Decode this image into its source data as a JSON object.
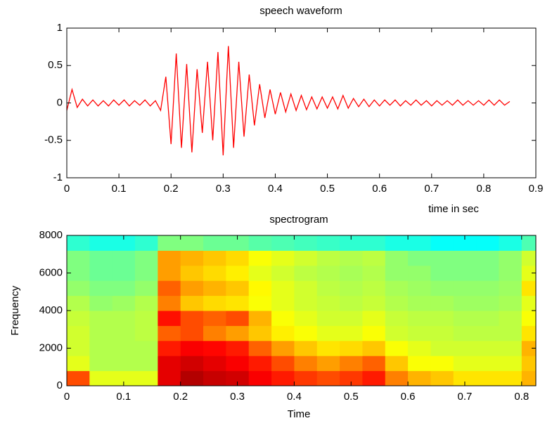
{
  "chart_data": [
    {
      "type": "line",
      "title": "speech waveform",
      "xlabel": "time in sec",
      "x": [
        0,
        0.01,
        0.02,
        0.03,
        0.04,
        0.05,
        0.06,
        0.07,
        0.08,
        0.09,
        0.1,
        0.11,
        0.12,
        0.13,
        0.14,
        0.15,
        0.16,
        0.17,
        0.18,
        0.19,
        0.2,
        0.21,
        0.22,
        0.23,
        0.24,
        0.25,
        0.26,
        0.27,
        0.28,
        0.29,
        0.3,
        0.31,
        0.32,
        0.33,
        0.34,
        0.35,
        0.36,
        0.37,
        0.38,
        0.39,
        0.4,
        0.41,
        0.42,
        0.43,
        0.44,
        0.45,
        0.46,
        0.47,
        0.48,
        0.49,
        0.5,
        0.51,
        0.52,
        0.53,
        0.54,
        0.55,
        0.56,
        0.57,
        0.58,
        0.59,
        0.6,
        0.61,
        0.62,
        0.63,
        0.64,
        0.65,
        0.66,
        0.67,
        0.68,
        0.69,
        0.7,
        0.71,
        0.72,
        0.73,
        0.74,
        0.75,
        0.76,
        0.77,
        0.78,
        0.79,
        0.8,
        0.81,
        0.82,
        0.83,
        0.84,
        0.85
      ],
      "values": [
        -0.1,
        0.18,
        -0.06,
        0.05,
        -0.04,
        0.04,
        -0.04,
        0.03,
        -0.04,
        0.04,
        -0.03,
        0.04,
        -0.04,
        0.03,
        -0.03,
        0.04,
        -0.04,
        0.03,
        -0.1,
        0.35,
        -0.55,
        0.66,
        -0.6,
        0.52,
        -0.66,
        0.45,
        -0.4,
        0.55,
        -0.5,
        0.68,
        -0.7,
        0.76,
        -0.6,
        0.55,
        -0.45,
        0.38,
        -0.3,
        0.25,
        -0.2,
        0.18,
        -0.15,
        0.14,
        -0.12,
        0.12,
        -0.1,
        0.1,
        -0.09,
        0.08,
        -0.08,
        0.08,
        -0.07,
        0.08,
        -0.08,
        0.1,
        -0.07,
        0.06,
        -0.05,
        0.05,
        -0.05,
        0.04,
        -0.04,
        0.04,
        -0.03,
        0.04,
        -0.04,
        0.03,
        -0.03,
        0.04,
        -0.03,
        0.03,
        -0.04,
        0.03,
        -0.03,
        0.03,
        -0.03,
        0.04,
        -0.03,
        0.03,
        -0.03,
        0.03,
        -0.03,
        0.04,
        -0.03,
        0.04,
        -0.03,
        0.02
      ],
      "color": "#ff0000",
      "xlim": [
        0,
        0.9
      ],
      "xticks": [
        0,
        0.1,
        0.2,
        0.3,
        0.4,
        0.5,
        0.6,
        0.7,
        0.8,
        0.9
      ],
      "ylim": [
        -1,
        1
      ],
      "yticks": [
        -1,
        -0.5,
        0,
        0.5,
        1
      ]
    },
    {
      "type": "heatmap",
      "title": "spectrogram",
      "xlabel": "Time",
      "ylabel": "Frequency",
      "colormap": "jet",
      "zlim": [
        0,
        1
      ],
      "xbins": [
        0,
        0.04,
        0.08,
        0.12,
        0.16,
        0.2,
        0.24,
        0.28,
        0.32,
        0.36,
        0.4,
        0.44,
        0.48,
        0.52,
        0.56,
        0.6,
        0.64,
        0.68,
        0.72,
        0.76,
        0.8,
        0.825
      ],
      "ybins": [
        0,
        800,
        1600,
        2400,
        3200,
        4000,
        4800,
        5600,
        6400,
        7200,
        8000
      ],
      "z": [
        [
          0.8,
          0.6,
          0.6,
          0.6,
          0.9,
          0.95,
          0.93,
          0.92,
          0.88,
          0.85,
          0.82,
          0.8,
          0.82,
          0.85,
          0.75,
          0.7,
          0.68,
          0.65,
          0.65,
          0.65,
          0.7
        ],
        [
          0.6,
          0.55,
          0.55,
          0.55,
          0.9,
          0.92,
          0.9,
          0.88,
          0.85,
          0.8,
          0.75,
          0.72,
          0.75,
          0.78,
          0.68,
          0.62,
          0.62,
          0.6,
          0.6,
          0.6,
          0.68
        ],
        [
          0.58,
          0.55,
          0.55,
          0.55,
          0.85,
          0.88,
          0.87,
          0.85,
          0.78,
          0.72,
          0.68,
          0.65,
          0.66,
          0.68,
          0.62,
          0.6,
          0.58,
          0.58,
          0.58,
          0.58,
          0.7
        ],
        [
          0.58,
          0.55,
          0.55,
          0.56,
          0.78,
          0.8,
          0.75,
          0.72,
          0.68,
          0.64,
          0.62,
          0.6,
          0.6,
          0.62,
          0.58,
          0.57,
          0.57,
          0.56,
          0.56,
          0.56,
          0.65
        ],
        [
          0.57,
          0.55,
          0.55,
          0.56,
          0.86,
          0.8,
          0.78,
          0.8,
          0.7,
          0.62,
          0.6,
          0.58,
          0.58,
          0.6,
          0.57,
          0.56,
          0.56,
          0.55,
          0.55,
          0.56,
          0.62
        ],
        [
          0.55,
          0.52,
          0.53,
          0.55,
          0.75,
          0.68,
          0.66,
          0.65,
          0.62,
          0.6,
          0.58,
          0.57,
          0.56,
          0.57,
          0.55,
          0.54,
          0.54,
          0.53,
          0.53,
          0.54,
          0.6
        ],
        [
          0.52,
          0.5,
          0.5,
          0.52,
          0.78,
          0.72,
          0.7,
          0.68,
          0.63,
          0.6,
          0.58,
          0.56,
          0.55,
          0.56,
          0.54,
          0.53,
          0.52,
          0.52,
          0.52,
          0.53,
          0.65
        ],
        [
          0.5,
          0.48,
          0.48,
          0.5,
          0.72,
          0.68,
          0.66,
          0.64,
          0.6,
          0.58,
          0.56,
          0.55,
          0.54,
          0.55,
          0.52,
          0.52,
          0.5,
          0.5,
          0.5,
          0.52,
          0.6
        ],
        [
          0.5,
          0.48,
          0.48,
          0.5,
          0.72,
          0.7,
          0.68,
          0.66,
          0.62,
          0.6,
          0.58,
          0.56,
          0.55,
          0.56,
          0.52,
          0.5,
          0.5,
          0.5,
          0.5,
          0.52,
          0.58
        ],
        [
          0.42,
          0.4,
          0.4,
          0.42,
          0.5,
          0.5,
          0.48,
          0.48,
          0.46,
          0.45,
          0.44,
          0.43,
          0.42,
          0.42,
          0.4,
          0.4,
          0.38,
          0.38,
          0.38,
          0.4,
          0.45
        ]
      ],
      "xlim": [
        0,
        0.825
      ],
      "xticks": [
        0,
        0.1,
        0.2,
        0.3,
        0.4,
        0.5,
        0.6,
        0.7,
        0.8
      ],
      "ylim": [
        0,
        8000
      ],
      "yticks": [
        0,
        2000,
        4000,
        6000,
        8000
      ]
    }
  ]
}
